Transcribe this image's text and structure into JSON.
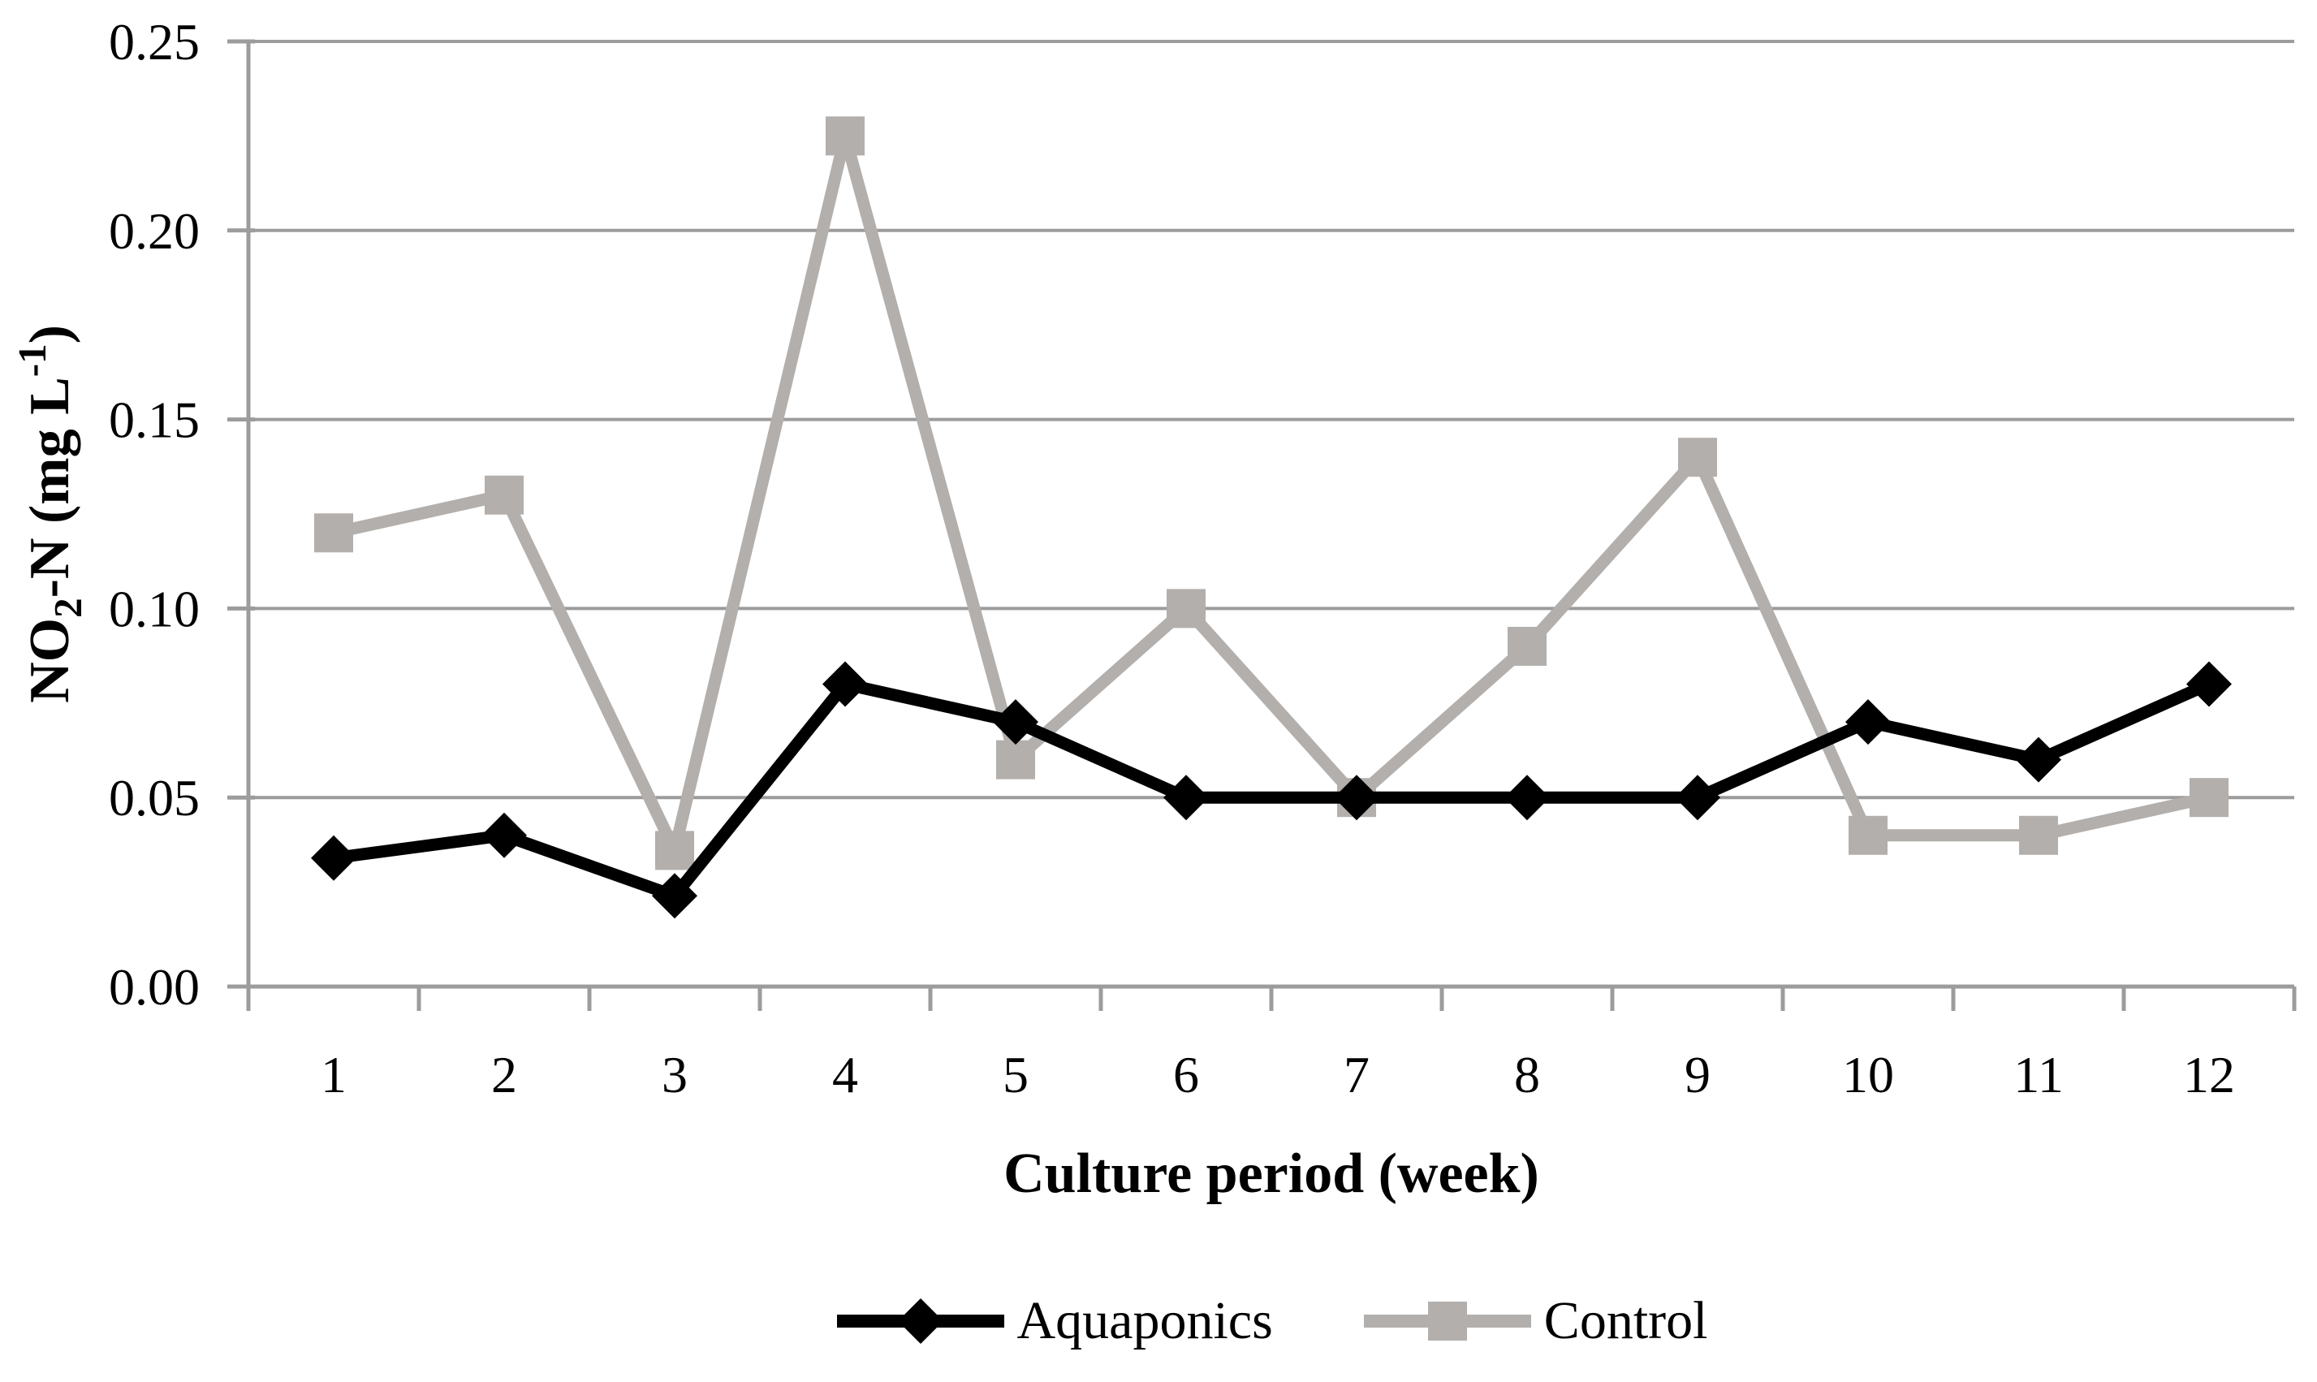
{
  "chart_data": {
    "type": "line",
    "title": "",
    "xlabel": "Culture period (week)",
    "ylabel": "NO2-N (mg L-1)",
    "ylabel_parts": {
      "prefix": "NO",
      "sub": "2",
      "mid": "-N (mg L",
      "sup": "-1",
      "suffix": ")"
    },
    "categories": [
      "1",
      "2",
      "3",
      "4",
      "5",
      "6",
      "7",
      "8",
      "9",
      "10",
      "11",
      "12"
    ],
    "series": [
      {
        "name": "Aquaponics",
        "marker": "diamond",
        "color": "#000000",
        "values": [
          0.034,
          0.04,
          0.024,
          0.08,
          0.07,
          0.05,
          0.05,
          0.05,
          0.05,
          0.07,
          0.06,
          0.08
        ]
      },
      {
        "name": "Control",
        "marker": "square",
        "color": "#b2afac",
        "values": [
          0.12,
          0.13,
          0.036,
          0.225,
          0.06,
          0.1,
          0.05,
          0.09,
          0.14,
          0.04,
          0.04,
          0.05
        ]
      }
    ],
    "yticks": [
      0.0,
      0.05,
      0.1,
      0.15,
      0.2,
      0.25
    ],
    "ylim": [
      0,
      0.25
    ],
    "grid": true,
    "legend_position": "bottom",
    "colors": {
      "grid": "#9c9c9c",
      "axis": "#9c9c9c",
      "text": "#000000"
    }
  }
}
